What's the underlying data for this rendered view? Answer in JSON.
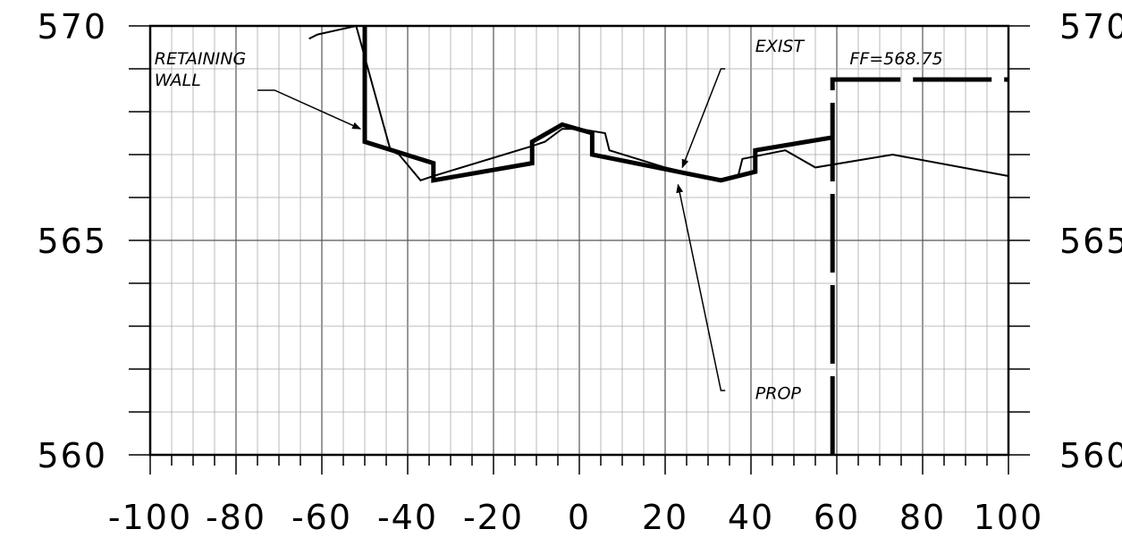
{
  "chart_data": {
    "type": "line",
    "title": "",
    "xlabel": "",
    "ylabel": "",
    "xlim": [
      -100,
      100
    ],
    "ylim": [
      560,
      570
    ],
    "x_ticks": [
      -100,
      -80,
      -60,
      -40,
      -20,
      0,
      20,
      40,
      60,
      80,
      100
    ],
    "x_tick_labels": [
      "-100",
      "-80",
      "-60",
      "-40",
      "-20",
      "0",
      "20",
      "40",
      "60",
      "80",
      "100"
    ],
    "y_ticks": [
      560,
      565,
      570
    ],
    "y_tick_labels": [
      "560",
      "565",
      "570"
    ],
    "grid": true,
    "minor_grid_x": 5,
    "minor_grid_y": 1,
    "series": [
      {
        "name": "EXIST",
        "style": "thin",
        "color": "#000000",
        "x": [
          -63,
          -61,
          -52,
          -44,
          -42,
          -37,
          -34,
          -11,
          -8,
          -4,
          0,
          6,
          7,
          20,
          33,
          37,
          38,
          48,
          55,
          73,
          100
        ],
        "y": [
          569.7,
          569.8,
          570.0,
          567.1,
          567.0,
          566.4,
          566.5,
          567.2,
          567.3,
          567.6,
          567.6,
          567.5,
          567.1,
          566.7,
          566.4,
          566.5,
          566.9,
          567.1,
          566.7,
          567.0,
          566.5
        ]
      },
      {
        "name": "PROP",
        "style": "thick",
        "color": "#000000",
        "x": [
          -50,
          -50,
          -34,
          -34,
          -11,
          -11,
          -4,
          3,
          3,
          33,
          41,
          41,
          59
        ],
        "y": [
          570.0,
          567.3,
          566.8,
          566.4,
          566.8,
          567.3,
          567.7,
          567.5,
          567.0,
          566.4,
          566.6,
          567.1,
          567.4
        ]
      },
      {
        "name": "",
        "style": "thick-dashed",
        "color": "#000000",
        "x": [
          59,
          59,
          100
        ],
        "y": [
          560.0,
          568.75,
          568.75
        ]
      }
    ],
    "annotations": [
      {
        "text": "RETAINING",
        "x": -99,
        "y": 569.1
      },
      {
        "text": "WALL",
        "x": -99,
        "y": 568.6
      },
      {
        "text": "EXIST",
        "x": 41,
        "y": 569.4
      },
      {
        "text": "FF=568.75",
        "x": 63,
        "y": 569.1
      },
      {
        "text": "PROP",
        "x": 41,
        "y": 561.3
      }
    ],
    "leaders": [
      {
        "points": [
          [
            -75,
            568.5
          ],
          [
            -71,
            568.5
          ],
          [
            -51,
            567.6
          ]
        ],
        "label": "RETAINING WALL"
      },
      {
        "points": [
          [
            34,
            569.0
          ],
          [
            33,
            569.0
          ],
          [
            24,
            566.7
          ]
        ],
        "label": "EXIST"
      },
      {
        "points": [
          [
            34,
            561.5
          ],
          [
            33,
            561.5
          ],
          [
            23,
            566.3
          ]
        ],
        "label": "PROP"
      }
    ]
  }
}
